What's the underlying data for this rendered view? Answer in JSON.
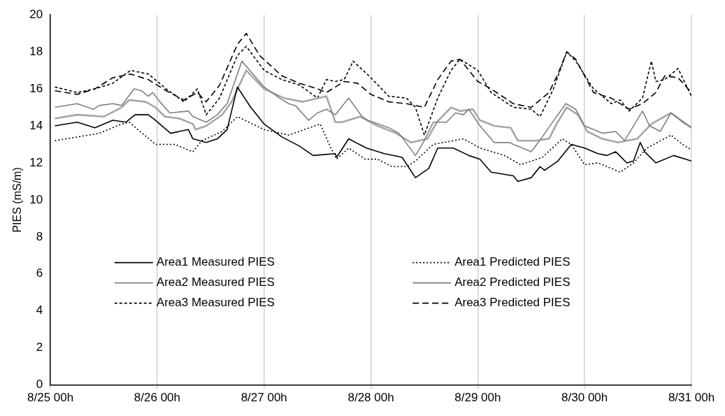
{
  "chart_data": {
    "type": "line",
    "ylabel": "PIES (mS/m)",
    "xlim": [
      "--08-25T00:00",
      "--08-31T00:00"
    ],
    "ylim": [
      0,
      20
    ],
    "xticks": [
      {
        "value": "--08-25T00:00",
        "label": "8/25 00h"
      },
      {
        "value": "--08-26T00:00",
        "label": "8/26 00h"
      },
      {
        "value": "--08-27T00:00",
        "label": "8/27 00h"
      },
      {
        "value": "--08-28T00:00",
        "label": "8/28 00h"
      },
      {
        "value": "--08-29T00:00",
        "label": "8/29 00h"
      },
      {
        "value": "--08-30T00:00",
        "label": "8/30 00h"
      },
      {
        "value": "--08-31T00:00",
        "label": "8/31 00h"
      }
    ],
    "yticks": [
      0,
      2,
      4,
      6,
      8,
      10,
      12,
      14,
      16,
      18,
      20
    ],
    "grid": "x",
    "legend": "bottom",
    "marker": "none",
    "series": [
      {
        "name": "Area1 Measured PIES",
        "color": "#000000",
        "line_style": "solid",
        "x": [
          "--08-25T01:00",
          "--08-25T06:00",
          "--08-25T10:00",
          "--08-25T14:00",
          "--08-25T17:00",
          "--08-25T19:00",
          "--08-25T22:00",
          "--08-25T23:36",
          "--08-26T03:00",
          "--08-26T07:00",
          "--08-26T08:00",
          "--08-26T11:00",
          "--08-26T13:30",
          "--08-26T15:42",
          "--08-26T18:00",
          "--08-26T21:00",
          "--08-27T00:00",
          "--08-27T04:00",
          "--08-27T08:00",
          "--08-27T11:00",
          "--08-27T16:00",
          "--08-27T16:18",
          "--08-27T19:00",
          "--08-27T23:00",
          "--08-28T03:00",
          "--08-28T07:00",
          "--08-28T10:00",
          "--08-28T13:00",
          "--08-28T15:00",
          "--08-28T18:30",
          "--08-28T22:00",
          "--08-29T00:30",
          "--08-29T03:00",
          "--08-29T08:00",
          "--08-29T09:00",
          "--08-29T12:00",
          "--08-29T14:00",
          "--08-29T15:00",
          "--08-29T18:00",
          "--08-29T21:00",
          "--08-30T00:00",
          "--08-30T03:00",
          "--08-30T05:00",
          "--08-30T07:00",
          "--08-30T09:30",
          "--08-30T11:00",
          "--08-30T12:30",
          "--08-30T13:30",
          "--08-30T16:00",
          "--08-30T20:00",
          "--08-31T00:00"
        ],
        "values": [
          14.0,
          14.2,
          13.9,
          14.3,
          14.2,
          14.6,
          14.6,
          14.3,
          13.6,
          13.8,
          13.3,
          13.1,
          13.3,
          13.8,
          16.1,
          15.0,
          14.1,
          13.4,
          12.9,
          12.4,
          12.5,
          12.3,
          13.3,
          12.8,
          12.5,
          12.3,
          11.2,
          11.7,
          12.8,
          12.8,
          12.4,
          12.2,
          11.5,
          11.3,
          11.0,
          11.2,
          11.8,
          11.6,
          12.1,
          13.0,
          12.8,
          12.5,
          12.4,
          12.6,
          12.0,
          12.1,
          13.1,
          12.6,
          12.0,
          12.4,
          12.1
        ]
      },
      {
        "name": "Area1 Predicted PIES",
        "color": "#000000",
        "line_style": "dotted",
        "x": [
          "--08-25T01:00",
          "--08-25T06:00",
          "--08-25T11:00",
          "--08-25T16:00",
          "--08-25T17:42",
          "--08-25T23:36",
          "--08-26T04:00",
          "--08-26T08:00",
          "--08-26T10:00",
          "--08-26T14:36",
          "--08-26T18:00",
          "--08-27T00:00",
          "--08-27T05:30",
          "--08-27T12:36",
          "--08-27T15:00",
          "--08-27T16:18",
          "--08-27T19:00",
          "--08-27T22:42",
          "--08-28T01:30",
          "--08-28T04:42",
          "--08-28T08:00",
          "--08-28T10:00",
          "--08-28T14:00",
          "--08-28T20:48",
          "--08-29T00:30",
          "--08-29T06:00",
          "--08-29T09:36",
          "--08-29T14:30",
          "--08-29T19:00",
          "--08-29T21:00",
          "--08-30T00:00",
          "--08-30T03:00",
          "--08-30T08:00",
          "--08-30T11:00",
          "--08-30T14:00",
          "--08-30T19:24",
          "--08-30T22:00",
          "--08-31T00:00"
        ],
        "values": [
          13.2,
          13.4,
          13.6,
          14.1,
          14.2,
          13.0,
          13.0,
          12.6,
          13.2,
          13.7,
          14.5,
          13.8,
          13.5,
          14.1,
          12.8,
          12.2,
          12.8,
          12.2,
          12.2,
          11.8,
          11.8,
          12.1,
          13.0,
          13.3,
          12.8,
          12.4,
          11.9,
          12.3,
          13.3,
          13.0,
          11.9,
          12.0,
          11.5,
          12.0,
          12.8,
          13.5,
          13.0,
          12.7
        ]
      },
      {
        "name": "Area2 Measured PIES",
        "color": "#808080",
        "line_style": "solid",
        "x": [
          "--08-25T01:00",
          "--08-25T06:00",
          "--08-25T09:36",
          "--08-25T11:00",
          "--08-25T14:00",
          "--08-25T16:00",
          "--08-25T18:48",
          "--08-25T20:24",
          "--08-25T22:00",
          "--08-25T23:00",
          "--08-26T00:36",
          "--08-26T02:48",
          "--08-26T07:00",
          "--08-26T08:00",
          "--08-26T11:00",
          "--08-26T13:30",
          "--08-26T15:42",
          "--08-26T19:00",
          "--08-27T00:00",
          "--08-27T03:30",
          "--08-27T05:30",
          "--08-27T07:00",
          "--08-27T10:00",
          "--08-27T12:00",
          "--08-27T14:00",
          "--08-27T16:00",
          "--08-27T19:00",
          "--08-27T22:00",
          "--08-27T23:18",
          "--08-28T04:00",
          "--08-28T06:18",
          "--08-28T10:00",
          "--08-28T12:00",
          "--08-28T14:00",
          "--08-28T17:00",
          "--08-28T19:00",
          "--08-28T20:48",
          "--08-28T22:00",
          "--08-29T00:30",
          "--08-29T03:42",
          "--08-29T07:00",
          "--08-29T12:00",
          "--08-29T14:30",
          "--08-29T16:30",
          "--08-29T19:48",
          "--08-29T22:00",
          "--08-30T00:00",
          "--08-30T04:00",
          "--08-30T07:00",
          "--08-30T09:00",
          "--08-30T13:00",
          "--08-30T14:36",
          "--08-30T17:00",
          "--08-30T19:24",
          "--08-30T22:00",
          "--08-31T00:00"
        ],
        "values": [
          15.0,
          15.2,
          14.9,
          15.1,
          15.2,
          15.1,
          16.0,
          15.9,
          15.6,
          15.8,
          15.3,
          14.7,
          14.8,
          14.5,
          14.2,
          14.6,
          15.2,
          17.5,
          16.1,
          15.5,
          15.2,
          15.1,
          14.3,
          14.7,
          14.9,
          14.6,
          15.5,
          14.5,
          14.3,
          13.9,
          13.6,
          12.4,
          13.2,
          14.2,
          14.2,
          14.7,
          14.6,
          14.9,
          14.0,
          13.1,
          13.1,
          12.6,
          13.4,
          14.1,
          15.2,
          14.9,
          14.0,
          13.6,
          13.7,
          13.2,
          14.8,
          14.0,
          13.7,
          14.7,
          14.2,
          13.9
        ]
      },
      {
        "name": "Area2 Predicted PIES",
        "color": "#a6a6a6",
        "line_style": "solid",
        "x": [
          "--08-25T01:00",
          "--08-25T06:00",
          "--08-25T12:00",
          "--08-25T16:00",
          "--08-25T17:42",
          "--08-25T21:24",
          "--08-25T23:36",
          "--08-26T01:42",
          "--08-26T05:00",
          "--08-26T08:00",
          "--08-26T08:36",
          "--08-26T11:00",
          "--08-26T14:36",
          "--08-26T16:42",
          "--08-26T20:00",
          "--08-27T00:00",
          "--08-27T04:30",
          "--08-27T08:42",
          "--08-27T14:00",
          "--08-27T16:00",
          "--08-27T17:30",
          "--08-27T21:36",
          "--08-28T01:30",
          "--08-28T05:42",
          "--08-28T09:00",
          "--08-28T12:42",
          "--08-28T14:48",
          "--08-28T18:00",
          "--08-28T20:00",
          "--08-28T22:54",
          "--08-29T00:30",
          "--08-29T03:42",
          "--08-29T07:24",
          "--08-29T09:00",
          "--08-29T13:00",
          "--08-29T16:00",
          "--08-29T17:42",
          "--08-29T20:00",
          "--08-29T22:30",
          "--08-30T00:36",
          "--08-30T04:00",
          "--08-30T07:30",
          "--08-30T11:48",
          "--08-30T15:00",
          "--08-30T19:24",
          "--08-31T00:00"
        ],
        "values": [
          14.4,
          14.6,
          14.5,
          15.0,
          15.4,
          15.3,
          15.0,
          14.5,
          14.4,
          14.1,
          13.8,
          14.0,
          14.6,
          15.3,
          17.0,
          16.0,
          15.5,
          15.3,
          15.6,
          14.2,
          14.2,
          14.5,
          14.0,
          13.6,
          13.1,
          13.3,
          14.2,
          15.0,
          14.8,
          14.9,
          14.3,
          14.0,
          13.9,
          13.2,
          13.2,
          13.3,
          14.1,
          15.0,
          14.6,
          13.7,
          13.3,
          13.1,
          13.3,
          14.1,
          14.7,
          13.9
        ]
      },
      {
        "name": "Area3 Measured PIES",
        "color": "#000000",
        "line_style": "dashed",
        "x": [
          "--08-25T01:00",
          "--08-25T06:00",
          "--08-25T10:00",
          "--08-25T14:00",
          "--08-25T18:00",
          "--08-25T22:00",
          "--08-26T02:00",
          "--08-26T06:00",
          "--08-26T09:00",
          "--08-26T11:00",
          "--08-26T14:00",
          "--08-26T18:00",
          "--08-26T20:00",
          "--08-27T00:00",
          "--08-27T04:00",
          "--08-27T08:00",
          "--08-27T12:00",
          "--08-27T14:00",
          "--08-27T16:00",
          "--08-27T18:00",
          "--08-27T20:00",
          "--08-28T00:00",
          "--08-28T04:00",
          "--08-28T08:00",
          "--08-28T10:00",
          "--08-28T12:00",
          "--08-28T15:00",
          "--08-28T18:00",
          "--08-28T20:00",
          "--08-29T00:00",
          "--08-29T03:00",
          "--08-29T08:00",
          "--08-29T12:00",
          "--08-29T14:00",
          "--08-29T17:00",
          "--08-29T20:00",
          "--08-29T22:00",
          "--08-30T02:00",
          "--08-30T06:00",
          "--08-30T08:00",
          "--08-30T10:00",
          "--08-30T13:00",
          "--08-30T15:00",
          "--08-30T16:00",
          "--08-30T18:00",
          "--08-30T21:00",
          "--08-31T00:00"
        ],
        "values": [
          16.1,
          15.8,
          16.0,
          16.3,
          17.0,
          16.8,
          16.0,
          15.3,
          16.0,
          14.6,
          15.5,
          17.8,
          18.3,
          17.0,
          16.5,
          16.2,
          15.5,
          16.5,
          16.4,
          16.5,
          17.5,
          16.6,
          15.6,
          15.5,
          15.0,
          13.5,
          15.5,
          17.0,
          17.6,
          17.0,
          15.8,
          15.0,
          14.9,
          14.5,
          16.0,
          18.0,
          17.5,
          16.0,
          15.2,
          15.4,
          14.8,
          15.5,
          17.5,
          16.4,
          16.5,
          17.1,
          15.6
        ]
      },
      {
        "name": "Area3 Predicted PIES",
        "color": "#000000",
        "line_style": "dashed",
        "x": [
          "--08-25T01:00",
          "--08-25T06:00",
          "--08-25T10:00",
          "--08-25T14:00",
          "--08-25T18:00",
          "--08-25T22:00",
          "--08-26T02:00",
          "--08-26T06:00",
          "--08-26T09:00",
          "--08-26T11:00",
          "--08-26T14:00",
          "--08-26T18:00",
          "--08-26T20:00",
          "--08-26T23:00",
          "--08-27T04:00",
          "--08-27T08:00",
          "--08-27T12:00",
          "--08-27T14:00",
          "--08-27T18:00",
          "--08-27T21:00",
          "--08-28T00:00",
          "--08-28T04:00",
          "--08-28T08:00",
          "--08-28T12:00",
          "--08-28T15:00",
          "--08-28T18:00",
          "--08-28T20:00",
          "--08-29T00:00",
          "--08-29T03:00",
          "--08-29T08:00",
          "--08-29T12:00",
          "--08-29T16:00",
          "--08-29T18:00",
          "--08-29T20:00",
          "--08-29T22:00",
          "--08-30T02:00",
          "--08-30T06:00",
          "--08-30T10:00",
          "--08-30T13:00",
          "--08-30T16:00",
          "--08-30T18:00",
          "--08-30T21:00",
          "--08-31T00:00"
        ],
        "values": [
          15.9,
          15.7,
          16.0,
          16.6,
          16.8,
          16.5,
          15.9,
          15.4,
          15.8,
          15.3,
          16.2,
          18.4,
          19.0,
          17.8,
          16.7,
          16.3,
          16.0,
          15.8,
          16.4,
          16.3,
          15.7,
          15.3,
          15.2,
          15.0,
          16.5,
          17.5,
          17.6,
          16.4,
          16.0,
          15.2,
          15.0,
          15.8,
          16.8,
          18.0,
          17.6,
          15.8,
          15.5,
          14.9,
          15.2,
          15.8,
          16.7,
          16.6,
          15.8
        ]
      }
    ]
  }
}
